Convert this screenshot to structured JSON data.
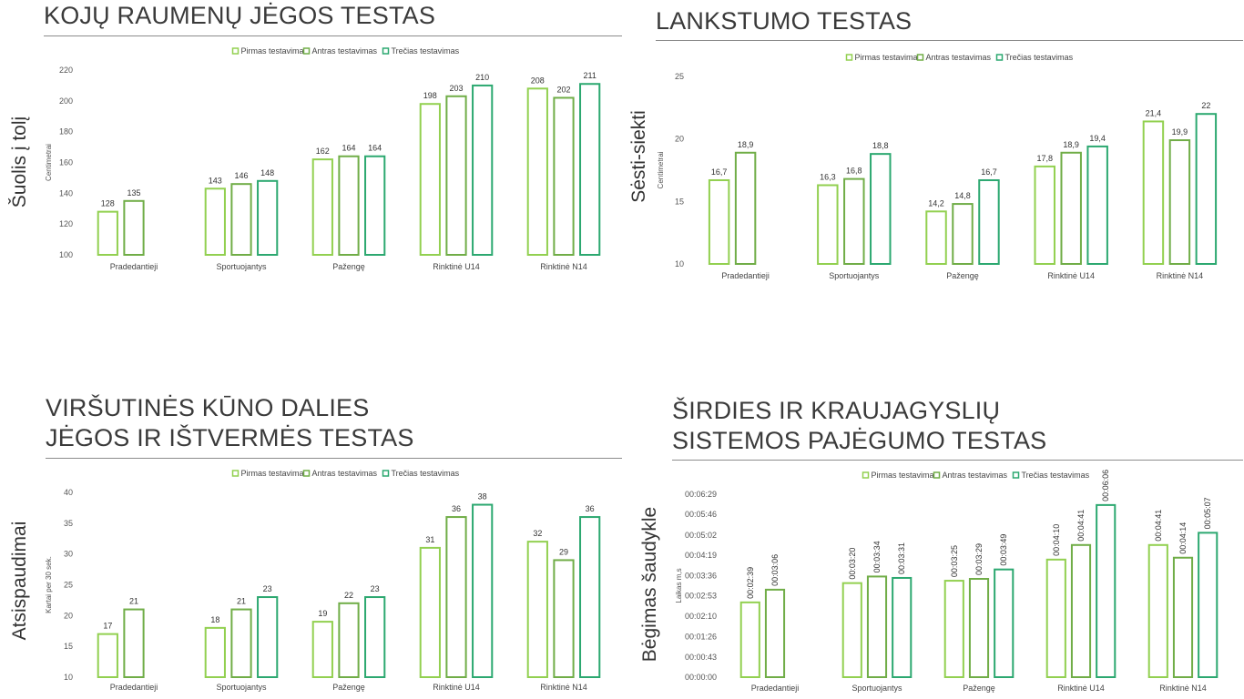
{
  "legend_labels": [
    "Pirmas testavimas",
    "Antras testavimas",
    "Trečias testavimas"
  ],
  "colors": {
    "series": [
      "#92d050",
      "#70ad47",
      "#2ca870"
    ]
  },
  "categories": [
    "Pradedantieji",
    "Sportuojantys",
    "Pažengę",
    "Rinktinė U14",
    "Rinktinė N14"
  ],
  "panels": {
    "legs": {
      "title_lines": [
        "KOJŲ RAUMENŲ JĖGOS TESTAS"
      ],
      "side_label": "Šuolis į tolį",
      "y_axis_label": "Centimetrai",
      "tick_labels": [
        "100",
        "120",
        "140",
        "160",
        "180",
        "200",
        "220"
      ],
      "value_labels": [
        [
          "128",
          "135",
          ""
        ],
        [
          "143",
          "146",
          "148"
        ],
        [
          "162",
          "164",
          "164"
        ],
        [
          "198",
          "203",
          "210"
        ],
        [
          "208",
          "202",
          "211"
        ]
      ]
    },
    "flex": {
      "title_lines": [
        "LANKSTUMO TESTAS"
      ],
      "side_label": "Sėsti-siekti",
      "y_axis_label": "Centimetrai",
      "tick_labels": [
        "10",
        "15",
        "20",
        "25"
      ],
      "value_labels": [
        [
          "16,7",
          "18,9",
          ""
        ],
        [
          "16,3",
          "16,8",
          "18,8"
        ],
        [
          "14,2",
          "14,8",
          "16,7"
        ],
        [
          "17,8",
          "18,9",
          "19,4"
        ],
        [
          "21,4",
          "19,9",
          "22"
        ]
      ]
    },
    "upper": {
      "title_lines": [
        "VIRŠUTINĖS KŪNO DALIES",
        "JĖGOS IR IŠTVERMĖS TESTAS"
      ],
      "side_label": "Atsispaudimai",
      "y_axis_label": "Kartai per 30 sek.",
      "tick_labels": [
        "10",
        "15",
        "20",
        "25",
        "30",
        "35",
        "40"
      ],
      "value_labels": [
        [
          "17",
          "21",
          ""
        ],
        [
          "18",
          "21",
          "23"
        ],
        [
          "19",
          "22",
          "23"
        ],
        [
          "31",
          "36",
          "38"
        ],
        [
          "32",
          "29",
          "36"
        ]
      ]
    },
    "cardio": {
      "title_lines": [
        "ŠIRDIES IR KRAUJAGYSLIŲ",
        "SISTEMOS PAJĖGUMO TESTAS"
      ],
      "side_label": "Bėgimas šaudykle",
      "y_axis_label": "Laikas m,s",
      "tick_labels": [
        "00:00:00",
        "00:00:43",
        "00:01:26",
        "00:02:10",
        "00:02:53",
        "00:03:36",
        "00:04:19",
        "00:05:02",
        "00:05:46",
        "00:06:29"
      ],
      "value_labels": [
        [
          "00:02:39",
          "00:03:06",
          ""
        ],
        [
          "00:03:20",
          "00:03:34",
          "00:03:31"
        ],
        [
          "00:03:25",
          "00:03:29",
          "00:03:49"
        ],
        [
          "00:04:10",
          "00:04:41",
          "00:06:06"
        ],
        [
          "00:04:41",
          "00:04:14",
          "00:05:07"
        ]
      ]
    }
  },
  "chart_data": [
    {
      "type": "bar",
      "title": "KOJŲ RAUMENŲ JĖGOS TESTAS",
      "categories": [
        "Pradedantieji",
        "Sportuojantys",
        "Pažengę",
        "Rinktinė U14",
        "Rinktinė N14"
      ],
      "series": [
        {
          "name": "Pirmas testavimas",
          "values": [
            128,
            143,
            162,
            198,
            208
          ]
        },
        {
          "name": "Antras testavimas",
          "values": [
            135,
            146,
            164,
            203,
            202
          ]
        },
        {
          "name": "Trečias testavimas",
          "values": [
            null,
            148,
            164,
            210,
            211
          ]
        }
      ],
      "ylabel": "Centimetrai",
      "ylim": [
        100,
        220
      ],
      "yticks": [
        100,
        120,
        140,
        160,
        180,
        200,
        220
      ],
      "legend": "top-center",
      "grid": false
    },
    {
      "type": "bar",
      "title": "LANKSTUMO TESTAS",
      "categories": [
        "Pradedantieji",
        "Sportuojantys",
        "Pažengę",
        "Rinktinė U14",
        "Rinktinė N14"
      ],
      "series": [
        {
          "name": "Pirmas testavimas",
          "values": [
            16.7,
            16.3,
            14.2,
            17.8,
            21.4
          ]
        },
        {
          "name": "Antras testavimas",
          "values": [
            18.9,
            16.8,
            14.8,
            18.9,
            19.9
          ]
        },
        {
          "name": "Trečias testavimas",
          "values": [
            null,
            18.8,
            16.7,
            19.4,
            22
          ]
        }
      ],
      "ylabel": "Centimetrai",
      "ylim": [
        10,
        25
      ],
      "yticks": [
        10,
        15,
        20,
        25
      ],
      "legend": "top-center",
      "grid": false
    },
    {
      "type": "bar",
      "title": "VIRŠUTINĖS KŪNO DALIES JĖGOS IR IŠTVERMĖS TESTAS",
      "categories": [
        "Pradedantieji",
        "Sportuojantys",
        "Pažengę",
        "Rinktinė U14",
        "Rinktinė N14"
      ],
      "series": [
        {
          "name": "Pirmas testavimas",
          "values": [
            17,
            18,
            19,
            31,
            32
          ]
        },
        {
          "name": "Antras testavimas",
          "values": [
            21,
            21,
            22,
            36,
            29
          ]
        },
        {
          "name": "Trečias testavimas",
          "values": [
            null,
            23,
            23,
            38,
            36
          ]
        }
      ],
      "ylabel": "Kartai per 30 sek.",
      "ylim": [
        10,
        40
      ],
      "yticks": [
        10,
        15,
        20,
        25,
        30,
        35,
        40
      ],
      "legend": "top-center",
      "grid": false
    },
    {
      "type": "bar",
      "title": "ŠIRDIES IR KRAUJAGYSLIŲ SISTEMOS PAJĖGUMO TESTAS",
      "categories": [
        "Pradedantieji",
        "Sportuojantys",
        "Pažengę",
        "Rinktinė U14",
        "Rinktinė N14"
      ],
      "series": [
        {
          "name": "Pirmas testavimas",
          "values": [
            "00:02:39",
            "00:03:20",
            "00:03:25",
            "00:04:10",
            "00:04:41"
          ]
        },
        {
          "name": "Antras testavimas",
          "values": [
            "00:03:06",
            "00:03:34",
            "00:03:29",
            "00:04:41",
            "00:04:14"
          ]
        },
        {
          "name": "Trečias testavimas",
          "values": [
            null,
            "00:03:31",
            "00:03:49",
            "00:06:06",
            "00:05:07"
          ]
        }
      ],
      "ylabel": "Laikas m,s",
      "ylim": [
        "00:00:00",
        "00:06:29"
      ],
      "yticks": [
        "00:00:00",
        "00:00:43",
        "00:01:26",
        "00:02:10",
        "00:02:53",
        "00:03:36",
        "00:04:19",
        "00:05:02",
        "00:05:46",
        "00:06:29"
      ],
      "legend": "top-center",
      "grid": false
    }
  ]
}
